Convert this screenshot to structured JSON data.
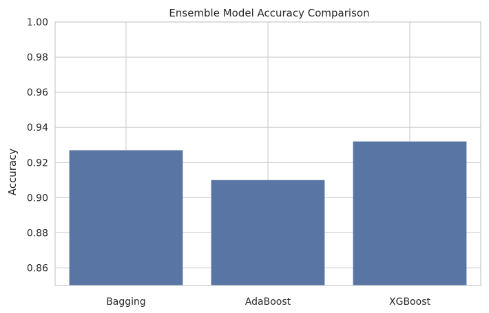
{
  "chart_data": {
    "type": "bar",
    "title": "Ensemble Model Accuracy Comparison",
    "xlabel": "",
    "ylabel": "Accuracy",
    "categories": [
      "Bagging",
      "AdaBoost",
      "XGBoost"
    ],
    "values": [
      0.927,
      0.91,
      0.932
    ],
    "ylim": [
      0.85,
      1.0
    ],
    "yticks": [
      "0.86",
      "0.88",
      "0.90",
      "0.92",
      "0.94",
      "0.96",
      "0.98",
      "1.00"
    ],
    "grid": true,
    "bar_color": "#5975a4",
    "background": "#ffffff"
  }
}
